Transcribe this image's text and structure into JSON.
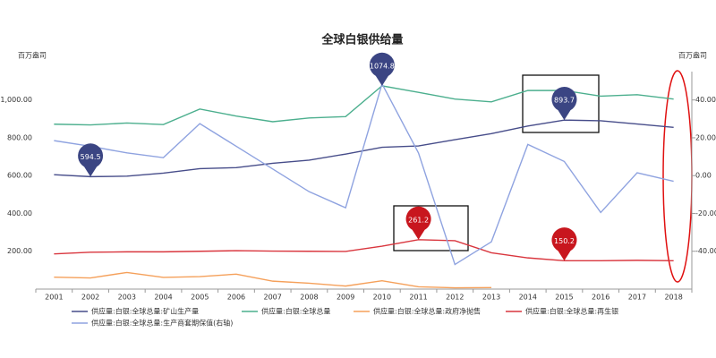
{
  "chart_data": {
    "type": "line",
    "title": "全球白银供给量",
    "y_unit": "百万盎司",
    "y2_unit": "百万盎司",
    "categories": [
      "2001",
      "2002",
      "2003",
      "2004",
      "2005",
      "2006",
      "2007",
      "2008",
      "2009",
      "2010",
      "2011",
      "2012",
      "2013",
      "2014",
      "2015",
      "2016",
      "2017",
      "2018"
    ],
    "ylim": [
      0,
      1150
    ],
    "yticks": [
      {
        "value": 200,
        "label": "200.00"
      },
      {
        "value": 400,
        "label": "400.00"
      },
      {
        "value": 600,
        "label": "600.00"
      },
      {
        "value": 800,
        "label": "800.00"
      },
      {
        "value": 1000,
        "label": "1,000.00"
      }
    ],
    "y2lim": [
      -60,
      55
    ],
    "y2ticks": [
      {
        "value": -40,
        "label": "-40.00"
      },
      {
        "value": -20,
        "label": "-20.00"
      },
      {
        "value": 0,
        "label": "0.00"
      },
      {
        "value": 20,
        "label": "20.00"
      },
      {
        "value": 40,
        "label": "40.00"
      }
    ],
    "grid": false,
    "legend": "bottom",
    "series": [
      {
        "name": "供应量:白银:全球总量:矿山生产量",
        "color": "#474d8a",
        "values": [
          605,
          594.5,
          597,
          613,
          637,
          642,
          665,
          682,
          714,
          750,
          757,
          790,
          822,
          862,
          893.7,
          890,
          873,
          855
        ]
      },
      {
        "name": "供应量:白银:全球总量",
        "color": "#4caf8e",
        "values": [
          872,
          868,
          878,
          870,
          952,
          915,
          885,
          905,
          912,
          1074.8,
          1040,
          1005,
          990,
          1050,
          1050,
          1020,
          1028,
          1005
        ]
      },
      {
        "name": "供应量:白银:全球总量:政府净抛售",
        "color": "#f5a05a",
        "values": [
          63,
          59,
          88,
          62,
          66,
          79,
          42,
          31,
          16,
          44,
          12,
          7,
          8,
          null,
          null,
          null,
          null,
          null
        ]
      },
      {
        "name": "供应量:白银:全球总量:再生银",
        "color": "#d9363e",
        "values": [
          186,
          195,
          197,
          197,
          200,
          203,
          201,
          200,
          199,
          227,
          261.2,
          256,
          192,
          165,
          150.2,
          150,
          152,
          150
        ]
      },
      {
        "name": "供应量:白银:全球总量:生产商套期保值(右轴)",
        "color": "#8fa3e0",
        "axis": "y2",
        "values": [
          18.5,
          15.5,
          12,
          9.5,
          27.5,
          15.5,
          3.5,
          -8.5,
          -17,
          48.5,
          12,
          -47,
          -35,
          16.5,
          7.5,
          -19.5,
          1.5,
          -3
        ]
      }
    ],
    "markers": [
      {
        "series": 0,
        "index": 1,
        "color": "#3b4583"
      },
      {
        "series": 1,
        "index": 9,
        "color": "#3b4583"
      },
      {
        "series": 3,
        "index": 10,
        "color": "#c8161e"
      },
      {
        "series": 0,
        "index": 14,
        "color": "#3b4583"
      },
      {
        "series": 3,
        "index": 14,
        "color": "#c8161e"
      }
    ]
  }
}
